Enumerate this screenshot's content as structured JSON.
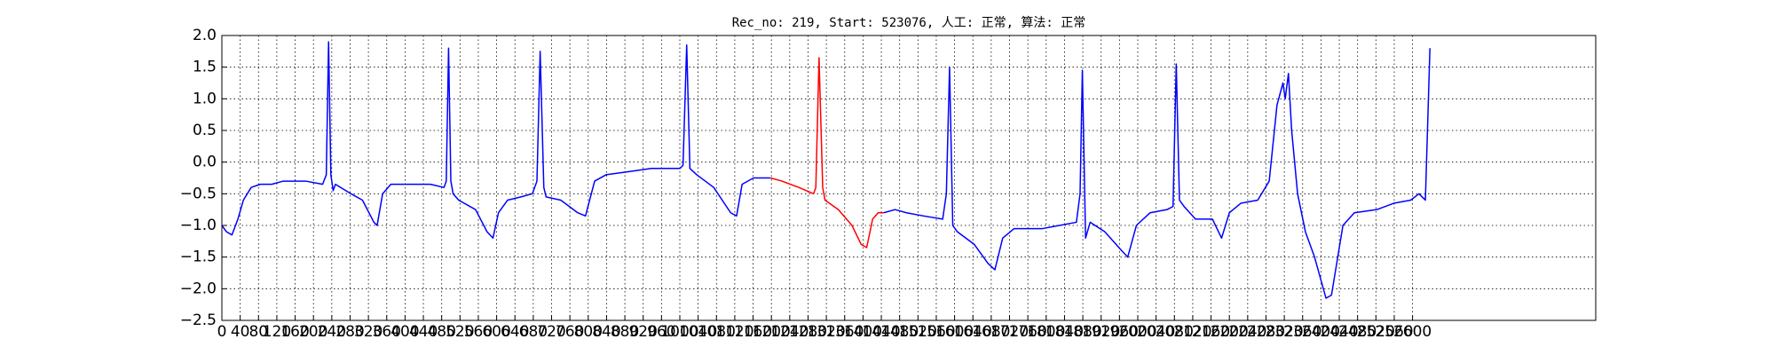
{
  "chart_data": {
    "type": "line",
    "title": "Rec_no: 219, Start: 523076, 人工: 正常, 算法: 正常",
    "xlim": [
      0,
      3000
    ],
    "ylim": [
      -2.5,
      2.0
    ],
    "xticks": [
      0,
      40,
      80,
      120,
      160,
      200,
      240,
      280,
      320,
      360,
      400,
      440,
      480,
      520,
      560,
      600,
      640,
      680,
      720,
      760,
      800,
      840,
      880,
      920,
      960,
      1000,
      1040,
      1080,
      1120,
      1160,
      1200,
      1240,
      1280,
      1320,
      1360,
      1400,
      1440,
      1480,
      1520,
      1560,
      1600,
      1640,
      1680,
      1720,
      1760,
      1800,
      1840,
      1880,
      1920,
      1960,
      2000,
      2040,
      2080,
      2120,
      2160,
      2200,
      2240,
      2280,
      2320,
      2360,
      2400,
      2440,
      2480,
      2520,
      2560,
      2600
    ],
    "yticks": [
      {
        "value": 2.0,
        "label": "2.0"
      },
      {
        "value": 1.5,
        "label": "1.5"
      },
      {
        "value": 1.0,
        "label": "1.0"
      },
      {
        "value": 0.5,
        "label": "0.5"
      },
      {
        "value": 0.0,
        "label": "0.0"
      },
      {
        "value": -0.5,
        "label": "−0.5"
      },
      {
        "value": -1.0,
        "label": "−1.0"
      },
      {
        "value": -1.5,
        "label": "−1.5"
      },
      {
        "value": -2.0,
        "label": "−2.0"
      },
      {
        "value": -2.5,
        "label": "−2.5"
      }
    ],
    "grid": true,
    "series": [
      {
        "color": "#0000ff",
        "x": [
          0,
          10,
          22,
          35,
          47,
          64,
          84,
          109,
          134,
          183,
          220,
          228,
          233,
          238,
          243,
          248,
          282,
          307,
          332,
          339,
          351,
          369,
          406,
          455,
          485,
          490,
          495,
          500,
          505,
          517,
          554,
          579,
          592,
          604,
          624,
          653,
          678,
          688,
          695,
          703,
          708,
          740,
          777,
          794,
          814,
          839,
          889,
          938,
          1000,
          1007,
          1015,
          1022,
          1037,
          1074,
          1111,
          1124,
          1136,
          1161,
          1198
        ],
        "values": [
          -1.0,
          -1.1,
          -1.15,
          -0.9,
          -0.6,
          -0.4,
          -0.35,
          -0.35,
          -0.3,
          -0.3,
          -0.35,
          -0.2,
          1.9,
          -0.2,
          -0.45,
          -0.35,
          -0.5,
          -0.6,
          -0.95,
          -1.0,
          -0.5,
          -0.35,
          -0.35,
          -0.35,
          -0.4,
          -0.3,
          1.8,
          -0.3,
          -0.5,
          -0.6,
          -0.75,
          -1.1,
          -1.2,
          -0.8,
          -0.6,
          -0.55,
          -0.5,
          -0.3,
          1.75,
          -0.4,
          -0.55,
          -0.6,
          -0.8,
          -0.85,
          -0.3,
          -0.2,
          -0.15,
          -0.1,
          -0.1,
          -0.05,
          1.85,
          -0.1,
          -0.2,
          -0.4,
          -0.8,
          -0.85,
          -0.35,
          -0.25,
          -0.25
        ]
      },
      {
        "color": "#ff0000",
        "x": [
          1198,
          1223,
          1260,
          1292,
          1297,
          1304,
          1312,
          1317,
          1346,
          1376,
          1396,
          1408,
          1421,
          1433,
          1445
        ],
        "values": [
          -0.25,
          -0.3,
          -0.4,
          -0.5,
          -0.4,
          1.65,
          -0.4,
          -0.6,
          -0.75,
          -1.0,
          -1.3,
          -1.35,
          -0.9,
          -0.8,
          -0.8
        ]
      },
      {
        "color": "#0000ff",
        "x": [
          1445,
          1470,
          1495,
          1532,
          1574,
          1582,
          1589,
          1596,
          1606,
          1643,
          1673,
          1688,
          1705,
          1730,
          1792,
          1866,
          1874,
          1879,
          1886,
          1896,
          1928,
          1965,
          1978,
          1997,
          2027,
          2064,
          2077,
          2084,
          2091,
          2101,
          2126,
          2163,
          2183,
          2200,
          2225,
          2262,
          2287,
          2304,
          2317,
          2322,
          2329,
          2336,
          2349,
          2366,
          2386,
          2411,
          2423,
          2448,
          2473,
          2522,
          2559,
          2596,
          2614,
          2628,
          2638
        ],
        "values": [
          -0.8,
          -0.75,
          -0.8,
          -0.85,
          -0.9,
          -0.5,
          1.5,
          -1.0,
          -1.1,
          -1.3,
          -1.6,
          -1.7,
          -1.2,
          -1.05,
          -1.05,
          -0.95,
          -0.5,
          1.45,
          -1.2,
          -0.95,
          -1.1,
          -1.4,
          -1.5,
          -1.0,
          -0.8,
          -0.75,
          -0.7,
          1.55,
          -0.6,
          -0.7,
          -0.9,
          -0.9,
          -1.2,
          -0.8,
          -0.65,
          -0.6,
          -0.3,
          0.9,
          1.25,
          1.0,
          1.4,
          0.5,
          -0.5,
          -1.1,
          -1.5,
          -2.15,
          -2.1,
          -1.0,
          -0.8,
          -0.75,
          -0.65,
          -0.6,
          -0.5,
          -0.6,
          1.8
        ]
      }
    ]
  }
}
